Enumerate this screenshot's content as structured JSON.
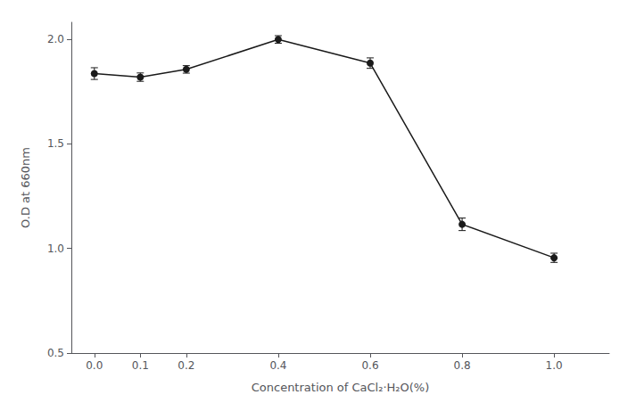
{
  "chart_data": {
    "type": "line",
    "xlabel": "Concentration of CaCl₂·H₂O(%)",
    "ylabel": "O.D at 660nm",
    "x": [
      0.0,
      0.1,
      0.2,
      0.4,
      0.6,
      0.8,
      1.0
    ],
    "values": [
      1.835,
      1.818,
      1.855,
      1.998,
      1.885,
      1.115,
      0.955
    ],
    "yerr": [
      0.028,
      0.02,
      0.018,
      0.018,
      0.025,
      0.03,
      0.022
    ],
    "color": "#1a1a1a",
    "marker": "circle",
    "line_style": "solid",
    "xlim": [
      -0.05,
      1.12
    ],
    "ylim": [
      0.5,
      2.08
    ],
    "xticks": [
      {
        "value": 0.0,
        "label": "0.0"
      },
      0.1,
      0.2,
      0.4,
      0.6,
      0.8,
      {
        "value": 1.0,
        "label": "1.0"
      }
    ],
    "yticks": [
      0.5,
      {
        "value": 1.0,
        "label": "1.0"
      },
      1.5,
      {
        "value": 2.0,
        "label": "2.0"
      }
    ],
    "grid": false
  }
}
